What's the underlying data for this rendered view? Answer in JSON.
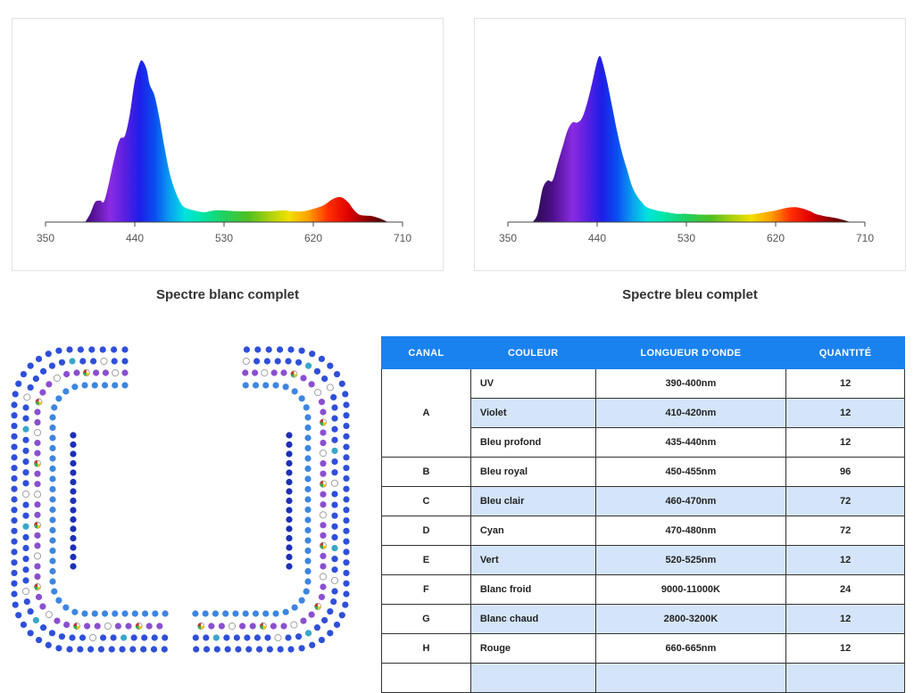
{
  "chart_data": [
    {
      "type": "area",
      "title": "Spectre blanc complet",
      "xlabel": "",
      "ylabel": "",
      "x_ticks": [
        350,
        440,
        530,
        620,
        710
      ],
      "xlim": [
        350,
        710
      ],
      "ylim": [
        0,
        1
      ],
      "grid": false,
      "x": [
        390,
        395,
        400,
        405,
        410,
        420,
        425,
        430,
        435,
        440,
        445,
        448,
        452,
        455,
        460,
        465,
        470,
        475,
        480,
        485,
        490,
        500,
        510,
        520,
        530,
        545,
        560,
        575,
        590,
        600,
        610,
        620,
        630,
        640,
        648,
        655,
        660,
        665,
        670,
        680,
        690,
        695
      ],
      "y": [
        0.0,
        0.05,
        0.12,
        0.13,
        0.14,
        0.4,
        0.5,
        0.52,
        0.65,
        0.85,
        0.96,
        0.97,
        0.92,
        0.83,
        0.76,
        0.62,
        0.45,
        0.3,
        0.2,
        0.13,
        0.09,
        0.07,
        0.06,
        0.07,
        0.07,
        0.065,
        0.065,
        0.065,
        0.07,
        0.065,
        0.065,
        0.08,
        0.1,
        0.14,
        0.15,
        0.12,
        0.08,
        0.05,
        0.04,
        0.035,
        0.015,
        0.0
      ]
    },
    {
      "type": "area",
      "title": "Spectre bleu complet",
      "xlabel": "",
      "ylabel": "",
      "x_ticks": [
        350,
        440,
        530,
        620,
        710
      ],
      "xlim": [
        350,
        710
      ],
      "ylim": [
        0,
        1
      ],
      "grid": false,
      "x": [
        375,
        380,
        385,
        390,
        395,
        400,
        405,
        410,
        415,
        420,
        425,
        430,
        435,
        440,
        443,
        446,
        450,
        455,
        460,
        465,
        470,
        475,
        480,
        485,
        490,
        500,
        510,
        520,
        530,
        545,
        560,
        575,
        590,
        600,
        610,
        620,
        630,
        640,
        648,
        655,
        660,
        670,
        680,
        690,
        695
      ],
      "y": [
        0.0,
        0.05,
        0.2,
        0.25,
        0.25,
        0.35,
        0.45,
        0.55,
        0.6,
        0.6,
        0.63,
        0.72,
        0.84,
        0.97,
        1.0,
        0.95,
        0.85,
        0.7,
        0.55,
        0.42,
        0.32,
        0.22,
        0.16,
        0.12,
        0.09,
        0.07,
        0.06,
        0.05,
        0.05,
        0.045,
        0.045,
        0.045,
        0.045,
        0.05,
        0.06,
        0.07,
        0.085,
        0.09,
        0.08,
        0.065,
        0.05,
        0.035,
        0.025,
        0.01,
        0.0
      ]
    },
    {
      "type": "table",
      "headers": [
        "CANAL",
        "COULEUR",
        "LONGUEUR D'ONDE",
        "QUANTITÉ"
      ],
      "rows": [
        [
          "A",
          "UV",
          "390-400nm",
          "12"
        ],
        [
          "A",
          "Violet",
          "410-420nm",
          "12"
        ],
        [
          "A",
          "Bleu profond",
          "435-440nm",
          "12"
        ],
        [
          "B",
          "Bleu royal",
          "450-455nm",
          "96"
        ],
        [
          "C",
          "Bleu clair",
          "460-470nm",
          "72"
        ],
        [
          "D",
          "Cyan",
          "470-480nm",
          "72"
        ],
        [
          "E",
          "Vert",
          "520-525nm",
          "12"
        ],
        [
          "F",
          "Blanc froid",
          "9000-11000K",
          "24"
        ],
        [
          "G",
          "Blanc chaud",
          "2800-3200K",
          "12"
        ],
        [
          "H",
          "Rouge",
          "660-665nm",
          "12"
        ]
      ]
    }
  ],
  "captions": {
    "left": "Spectre blanc complet",
    "right": "Spectre bleu complet"
  },
  "table": {
    "headers": {
      "canal": "CANAL",
      "couleur": "COULEUR",
      "longueur": "LONGUEUR D'ONDE",
      "quantite": "QUANTITÉ"
    },
    "group_a": {
      "canal": "A",
      "rows": [
        {
          "couleur": "UV",
          "longueur": "390-400nm",
          "quantite": "12"
        },
        {
          "couleur": "Violet",
          "longueur": "410-420nm",
          "quantite": "12"
        },
        {
          "couleur": "Bleu profond",
          "longueur": "435-440nm",
          "quantite": "12"
        }
      ]
    },
    "rows": [
      {
        "canal": "B",
        "couleur": "Bleu royal",
        "longueur": "450-455nm",
        "quantite": "96"
      },
      {
        "canal": "C",
        "couleur": "Bleu clair",
        "longueur": "460-470nm",
        "quantite": "72"
      },
      {
        "canal": "D",
        "couleur": "Cyan",
        "longueur": "470-480nm",
        "quantite": "72"
      },
      {
        "canal": "E",
        "couleur": "Vert",
        "longueur": "520-525nm",
        "quantite": "12"
      },
      {
        "canal": "F",
        "couleur": "Blanc froid",
        "longueur": "9000-11000K",
        "quantite": "24"
      },
      {
        "canal": "G",
        "couleur": "Blanc chaud",
        "longueur": "2800-3200K",
        "quantite": "12"
      },
      {
        "canal": "H",
        "couleur": "Rouge",
        "longueur": "660-665nm",
        "quantite": "12"
      }
    ]
  },
  "colors": {
    "header_blue": "#1a82ee",
    "row_shade": "#d4e5fa",
    "led_royal_blue": "#2f4fd8",
    "led_light_blue": "#3d86e0",
    "led_cyan": "#3aa6c8",
    "led_violet": "#8a4fd0",
    "led_deep_blue": "#1d2fb8",
    "led_white_outline": "#999999",
    "led_multichip": [
      "#c0392b",
      "#27ae60",
      "#f1c40f"
    ]
  }
}
